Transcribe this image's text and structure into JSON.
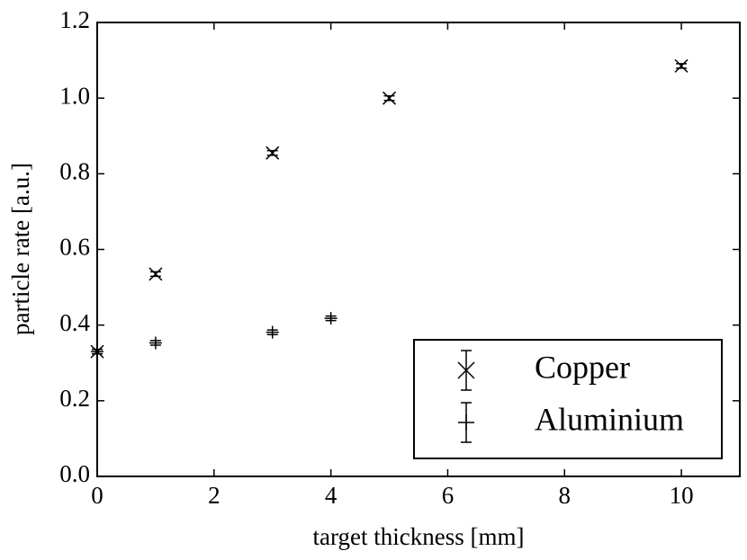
{
  "chart_data": {
    "type": "scatter",
    "xlabel": "target thickness [mm]",
    "ylabel": "particle rate [a.u.]",
    "xlim": [
      0,
      11
    ],
    "ylim": [
      0,
      1.2
    ],
    "xticks": [
      0,
      2,
      4,
      6,
      8,
      10
    ],
    "yticks": [
      {
        "value": 0,
        "label": "0.0"
      },
      0.2,
      0.4,
      0.6,
      0.8,
      {
        "value": 1,
        "label": "1.0"
      },
      1.2
    ],
    "legend": "lower right",
    "series": [
      {
        "name": "Copper",
        "color": "#000000",
        "marker": "x",
        "x": [
          0,
          1,
          3,
          5,
          10
        ],
        "values": [
          0.33,
          0.535,
          0.855,
          1.0,
          1.085
        ],
        "errors": [
          0.006,
          0.006,
          0.006,
          0.006,
          0.006
        ]
      },
      {
        "name": "Aluminium",
        "color": "#000000",
        "marker": "+",
        "x": [
          0,
          1,
          3,
          4
        ],
        "values": [
          0.33,
          0.353,
          0.381,
          0.418
        ],
        "errors": [
          0.006,
          0.006,
          0.006,
          0.006
        ]
      }
    ]
  }
}
